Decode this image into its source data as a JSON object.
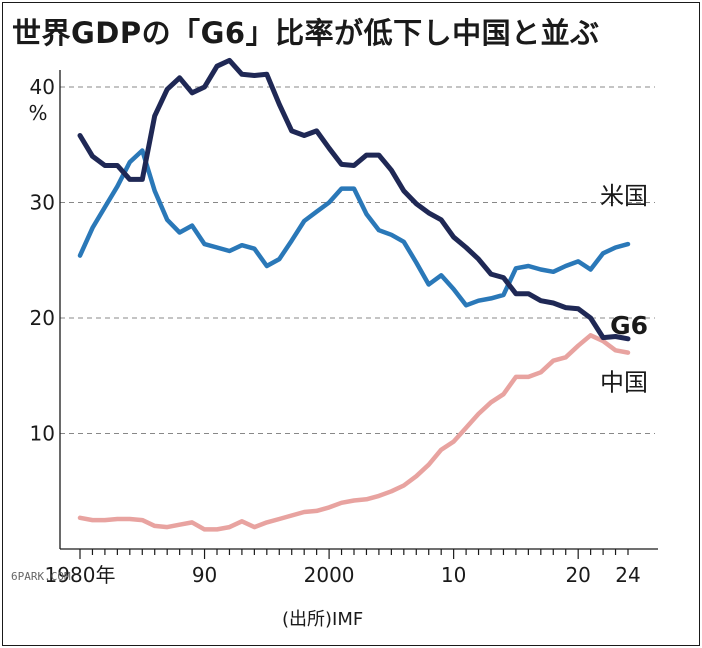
{
  "title": "世界GDPの「G6」比率が低下し中国と並ぶ",
  "source": "(出所)IMF",
  "watermark": "6PARK.COM",
  "colors": {
    "us": "#2a78b8",
    "g6": "#1f2855",
    "china": "#e8a3a0",
    "grid": "#888888",
    "text": "#1a1a1a"
  },
  "chart_data": {
    "type": "line",
    "title": "世界GDPの「G6」比率が低下し中国と並ぶ",
    "xlabel": "",
    "ylabel": "%",
    "ylim": [
      0,
      40
    ],
    "xlim": [
      1980,
      2024
    ],
    "y_ticks": [
      10,
      20,
      30,
      40
    ],
    "y_unit_label": "%",
    "x_ticks": [
      {
        "x": 1980,
        "label": "1980年"
      },
      {
        "x": 1990,
        "label": "90"
      },
      {
        "x": 2000,
        "label": "2000"
      },
      {
        "x": 2010,
        "label": "10"
      },
      {
        "x": 2020,
        "label": "20"
      },
      {
        "x": 2024,
        "label": "24"
      }
    ],
    "grid": "horizontal dashed",
    "x": [
      1980,
      1981,
      1982,
      1983,
      1984,
      1985,
      1986,
      1987,
      1988,
      1989,
      1990,
      1991,
      1992,
      1993,
      1994,
      1995,
      1996,
      1997,
      1998,
      1999,
      2000,
      2001,
      2002,
      2003,
      2004,
      2005,
      2006,
      2007,
      2008,
      2009,
      2010,
      2011,
      2012,
      2013,
      2014,
      2015,
      2016,
      2017,
      2018,
      2019,
      2020,
      2021,
      2022,
      2023,
      2024
    ],
    "series": [
      {
        "name": "米国",
        "key": "us",
        "values": [
          25.4,
          27.8,
          29.6,
          31.4,
          33.5,
          34.5,
          31.0,
          28.5,
          27.4,
          28.0,
          26.4,
          26.1,
          25.8,
          26.3,
          26.0,
          24.5,
          25.1,
          26.7,
          28.4,
          29.2,
          30.0,
          31.2,
          31.2,
          29.0,
          27.6,
          27.2,
          26.6,
          24.8,
          22.9,
          23.7,
          22.5,
          21.1,
          21.5,
          21.7,
          22.0,
          24.3,
          24.5,
          24.2,
          24.0,
          24.5,
          24.9,
          24.2,
          25.6,
          26.1,
          26.4
        ]
      },
      {
        "name": "G6",
        "key": "g6",
        "values": [
          35.8,
          34.0,
          33.2,
          33.2,
          32.0,
          32.0,
          37.5,
          39.8,
          40.8,
          39.5,
          40.0,
          41.8,
          42.3,
          41.1,
          41.0,
          41.1,
          38.5,
          36.2,
          35.8,
          36.2,
          34.7,
          33.3,
          33.2,
          34.1,
          34.1,
          32.8,
          31.0,
          29.9,
          29.1,
          28.5,
          27.0,
          26.1,
          25.1,
          23.8,
          23.5,
          22.1,
          22.1,
          21.5,
          21.3,
          20.9,
          20.8,
          20.0,
          18.3,
          18.4,
          18.2
        ]
      },
      {
        "name": "中国",
        "key": "china",
        "values": [
          2.7,
          2.5,
          2.5,
          2.6,
          2.6,
          2.5,
          2.0,
          1.9,
          2.1,
          2.3,
          1.7,
          1.7,
          1.9,
          2.4,
          1.9,
          2.3,
          2.6,
          2.9,
          3.2,
          3.3,
          3.6,
          4.0,
          4.2,
          4.3,
          4.6,
          5.0,
          5.5,
          6.3,
          7.3,
          8.6,
          9.3,
          10.5,
          11.7,
          12.7,
          13.4,
          14.9,
          14.9,
          15.3,
          16.3,
          16.6,
          17.6,
          18.5,
          18.0,
          17.2,
          17.0
        ]
      }
    ]
  }
}
